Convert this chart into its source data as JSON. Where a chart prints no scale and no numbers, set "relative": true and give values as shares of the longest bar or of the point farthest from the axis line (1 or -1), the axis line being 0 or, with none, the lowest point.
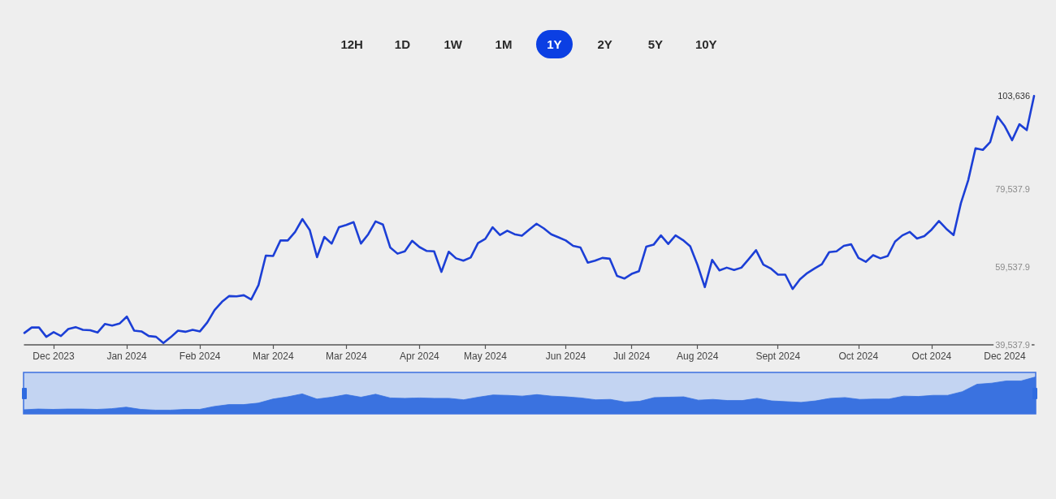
{
  "chart_data": [
    {
      "type": "line",
      "annotations": [
        "12H",
        "1D",
        "1W",
        "1M",
        "1Y",
        "2Y",
        "5Y",
        "10Y"
      ],
      "categories": [
        null,
        null,
        null,
        null,
        "Dec 2023",
        null,
        null,
        null,
        null,
        null,
        null,
        null,
        null,
        null,
        "Jan 2024",
        null,
        null,
        null,
        null,
        null,
        null,
        null,
        null,
        null,
        "Feb 2024",
        null,
        null,
        null,
        null,
        null,
        null,
        null,
        null,
        null,
        "Mar 2024",
        null,
        null,
        null,
        null,
        null,
        null,
        null,
        null,
        null,
        "Mar 2024",
        null,
        null,
        null,
        null,
        null,
        null,
        null,
        null,
        null,
        "Apr 2024",
        null,
        null,
        null,
        null,
        null,
        null,
        null,
        null,
        "May 2024",
        null,
        null,
        null,
        null,
        null,
        null,
        null,
        null,
        null,
        null,
        "Jun 2024",
        null,
        null,
        null,
        null,
        null,
        null,
        null,
        null,
        "Jul 2024",
        null,
        null,
        null,
        null,
        null,
        null,
        null,
        null,
        "Aug 2024",
        null,
        null,
        null,
        null,
        null,
        null,
        null,
        null,
        null,
        null,
        "Sept 2024",
        null,
        null,
        null,
        null,
        null,
        null,
        null,
        null,
        null,
        null,
        "Oct 2024",
        null,
        null,
        null,
        null,
        null,
        null,
        null,
        null,
        null,
        "Oct 2024",
        null,
        null,
        null,
        null,
        null,
        null,
        null,
        null,
        null,
        "Dec 2024",
        null,
        null,
        null,
        null
      ],
      "values": [
        42600,
        44000,
        44000,
        41600,
        42800,
        41800,
        43600,
        44100,
        43400,
        43300,
        42700,
        44900,
        44500,
        45000,
        46800,
        43200,
        43000,
        41800,
        41600,
        40000,
        41500,
        43200,
        42900,
        43400,
        43000,
        45300,
        48500,
        50600,
        52100,
        52000,
        52300,
        51200,
        54900,
        62500,
        62400,
        66400,
        66400,
        68600,
        71900,
        69100,
        62100,
        67300,
        65600,
        69800,
        70400,
        71100,
        65600,
        68000,
        71300,
        70500,
        64600,
        63000,
        63600,
        66300,
        64700,
        63700,
        63600,
        58300,
        63500,
        61800,
        61200,
        62000,
        65700,
        66800,
        69800,
        67800,
        68900,
        68000,
        67600,
        69200,
        70700,
        69500,
        68000,
        67200,
        66400,
        65000,
        64600,
        60700,
        61200,
        61900,
        61700,
        57300,
        56600,
        57800,
        58500,
        64800,
        65300,
        67700,
        65500,
        67700,
        66500,
        64900,
        60100,
        54400,
        61400,
        58700,
        59400,
        58800,
        59400,
        61600,
        63900,
        60200,
        59200,
        57600,
        57600,
        53900,
        56400,
        58000,
        59200,
        60300,
        63400,
        63600,
        65000,
        65400,
        61900,
        60900,
        62600,
        61800,
        62400,
        66100,
        67700,
        68600,
        66900,
        67500,
        69200,
        71400,
        69400,
        67800,
        76000,
        81900,
        90100,
        89700,
        91700,
        98300,
        95800,
        92200,
        96300,
        94800,
        103600
      ],
      "color": "#1c3fd6",
      "ylim": [
        39537.9,
        103636
      ],
      "yticks": [
        {
          "value": 39537.9,
          "label": "39,537.9"
        },
        {
          "value": 59537.9,
          "label": "59,537.9"
        },
        {
          "value": 79537.9,
          "label": "79,537.9"
        },
        {
          "value": 103636,
          "label": "103,636"
        }
      ]
    },
    {
      "type": "area",
      "relative": true,
      "categories": [
        null,
        null,
        null,
        null,
        null,
        null,
        null,
        null,
        null,
        null,
        null,
        null,
        null,
        null,
        null,
        null,
        null,
        null,
        null,
        null,
        null,
        null,
        null,
        null,
        null,
        null,
        null,
        null,
        null,
        null,
        null,
        null,
        null,
        null,
        null,
        null,
        null,
        null,
        null,
        null,
        null,
        null,
        null,
        null,
        null,
        null,
        null,
        null,
        null,
        null,
        null,
        null,
        null,
        null,
        null,
        null,
        null,
        null,
        null,
        null,
        null,
        null,
        null,
        null,
        null,
        null,
        null,
        null,
        null,
        null
      ],
      "values": [
        0.11,
        0.13,
        0.12,
        0.13,
        0.13,
        0.12,
        0.14,
        0.18,
        0.12,
        0.1,
        0.1,
        0.12,
        0.12,
        0.2,
        0.25,
        0.25,
        0.29,
        0.4,
        0.46,
        0.54,
        0.4,
        0.45,
        0.52,
        0.45,
        0.53,
        0.43,
        0.42,
        0.43,
        0.42,
        0.42,
        0.38,
        0.45,
        0.51,
        0.5,
        0.48,
        0.52,
        0.48,
        0.46,
        0.43,
        0.38,
        0.39,
        0.32,
        0.34,
        0.44,
        0.45,
        0.46,
        0.37,
        0.39,
        0.36,
        0.36,
        0.42,
        0.35,
        0.33,
        0.31,
        0.35,
        0.42,
        0.44,
        0.39,
        0.4,
        0.4,
        0.48,
        0.47,
        0.5,
        0.5,
        0.6,
        0.8,
        0.83,
        0.89,
        0.89,
        1.0
      ],
      "color": "#3a72e0"
    }
  ]
}
